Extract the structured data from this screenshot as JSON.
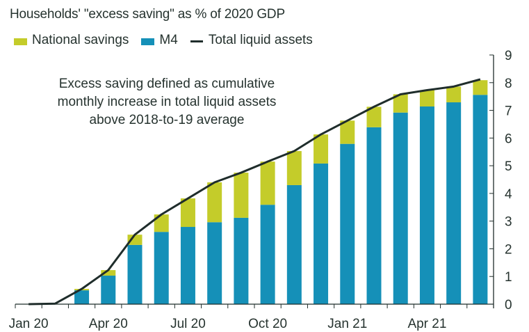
{
  "chart_data": {
    "type": "bar",
    "stacked": true,
    "title": "Households' \"excess saving\" as % of 2020 GDP",
    "annotation": [
      "Excess saving defined as cumulative",
      "monthly  increase in total liquid assets",
      "above 2018-to-19 average"
    ],
    "xlabel": "",
    "ylabel": "",
    "ylim": [
      0,
      9
    ],
    "yticks": [
      0,
      1,
      2,
      3,
      4,
      5,
      6,
      7,
      8,
      9
    ],
    "y_axis_side": "right",
    "categories": [
      "Jan 20",
      "Feb 20",
      "Mar 20",
      "Apr 20",
      "May 20",
      "Jun 20",
      "Jul 20",
      "Aug 20",
      "Sep 20",
      "Oct 20",
      "Nov 20",
      "Dec 20",
      "Jan 21",
      "Feb 21",
      "Mar 21",
      "Apr 21",
      "May 21",
      "Jun 21"
    ],
    "xtick_labels": [
      {
        "label": "Jan 20",
        "index": 0
      },
      {
        "label": "Apr 20",
        "index": 3
      },
      {
        "label": "Jul 20",
        "index": 6
      },
      {
        "label": "Oct 20",
        "index": 9
      },
      {
        "label": "Jan 21",
        "index": 12
      },
      {
        "label": "Apr 21",
        "index": 15
      }
    ],
    "series": [
      {
        "name": "M4",
        "kind": "bar",
        "color": "#1590b8",
        "values": [
          0,
          0,
          0.5,
          1.03,
          2.14,
          2.61,
          2.79,
          2.96,
          3.12,
          3.59,
          4.3,
          5.08,
          5.79,
          6.39,
          6.92,
          7.14,
          7.29,
          7.56
        ]
      },
      {
        "name": "National savings",
        "kind": "bar",
        "color": "#c4cc2a",
        "values": [
          0,
          0,
          0.05,
          0.2,
          0.37,
          0.63,
          1.03,
          1.44,
          1.63,
          1.56,
          1.23,
          1.05,
          0.84,
          0.74,
          0.66,
          0.59,
          0.57,
          0.53
        ]
      },
      {
        "name": "Total liquid assets",
        "kind": "line",
        "color": "#1f2d2b",
        "values": [
          0,
          0.02,
          0.55,
          1.23,
          2.51,
          3.24,
          3.82,
          4.4,
          4.75,
          5.15,
          5.53,
          6.13,
          6.63,
          7.13,
          7.58,
          7.73,
          7.86,
          8.12
        ]
      }
    ],
    "legend": [
      {
        "label": "National savings",
        "type": "swatch",
        "color": "#c4cc2a"
      },
      {
        "label": "M4",
        "type": "swatch",
        "color": "#1590b8"
      },
      {
        "label": "Total liquid assets",
        "type": "line",
        "color": "#1f2d2b"
      }
    ],
    "legend_position": "top-left",
    "grid": false
  }
}
